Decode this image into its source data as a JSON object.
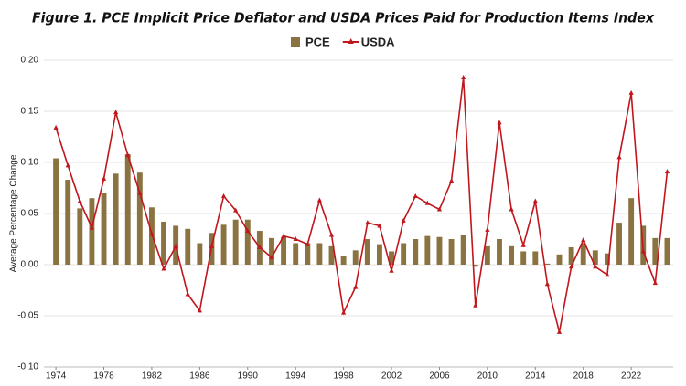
{
  "chart_data": {
    "type": "bar-line",
    "title": "Figure 1. PCE Implicit Price Deflator and USDA Prices Paid for Production Items Index",
    "y_label": "Average Percentage Change",
    "x": [
      1974,
      1975,
      1976,
      1977,
      1978,
      1979,
      1980,
      1981,
      1982,
      1983,
      1984,
      1985,
      1986,
      1987,
      1988,
      1989,
      1990,
      1991,
      1992,
      1993,
      1994,
      1995,
      1996,
      1997,
      1998,
      1999,
      2000,
      2001,
      2002,
      2003,
      2004,
      2005,
      2006,
      2007,
      2008,
      2009,
      2010,
      2011,
      2012,
      2013,
      2014,
      2015,
      2016,
      2017,
      2018,
      2019,
      2020,
      2021,
      2022,
      2023,
      2024,
      2025
    ],
    "series": [
      {
        "name": "PCE",
        "type": "bar",
        "color": "#8b7341",
        "values": [
          0.104,
          0.083,
          0.055,
          0.065,
          0.07,
          0.089,
          0.108,
          0.09,
          0.056,
          0.042,
          0.038,
          0.035,
          0.021,
          0.031,
          0.039,
          0.044,
          0.044,
          0.033,
          0.026,
          0.027,
          0.021,
          0.021,
          0.021,
          0.018,
          0.008,
          0.014,
          0.025,
          0.02,
          0.013,
          0.021,
          0.025,
          0.028,
          0.027,
          0.025,
          0.029,
          -0.002,
          0.018,
          0.025,
          0.018,
          0.013,
          0.013,
          0.001,
          0.01,
          0.017,
          0.021,
          0.014,
          0.011,
          0.041,
          0.065,
          0.038,
          0.026,
          0.026
        ]
      },
      {
        "name": "USDA",
        "type": "line",
        "color": "#c0161c",
        "values": [
          0.134,
          0.097,
          0.062,
          0.036,
          0.084,
          0.149,
          0.107,
          0.07,
          0.03,
          -0.004,
          0.018,
          -0.029,
          -0.045,
          0.018,
          0.067,
          0.053,
          0.033,
          0.017,
          0.007,
          0.028,
          0.025,
          0.02,
          0.063,
          0.029,
          -0.047,
          -0.022,
          0.041,
          0.038,
          -0.006,
          0.043,
          0.067,
          0.06,
          0.054,
          0.082,
          0.183,
          -0.04,
          0.034,
          0.139,
          0.054,
          0.019,
          0.062,
          -0.019,
          -0.066,
          -0.002,
          0.024,
          -0.002,
          -0.01,
          0.105,
          0.168,
          0.013,
          -0.018,
          0.091
        ]
      }
    ],
    "xlim": [
      1973,
      2025.5
    ],
    "xticks": [
      1974,
      1978,
      1982,
      1986,
      1990,
      1994,
      1998,
      2002,
      2006,
      2010,
      2014,
      2018,
      2022
    ],
    "ylim": [
      -0.1,
      0.2
    ],
    "yticks": [
      {
        "value": -0.1,
        "label": "-0.10"
      },
      {
        "value": -0.05,
        "label": "-0.05"
      },
      {
        "value": 0,
        "label": "0.00"
      },
      {
        "value": 0.05,
        "label": "0.05"
      },
      {
        "value": 0.1,
        "label": "0.10"
      },
      {
        "value": 0.15,
        "label": "0.15"
      },
      {
        "value": 0.2,
        "label": "0.20"
      }
    ],
    "grid": true,
    "legend": "top"
  }
}
